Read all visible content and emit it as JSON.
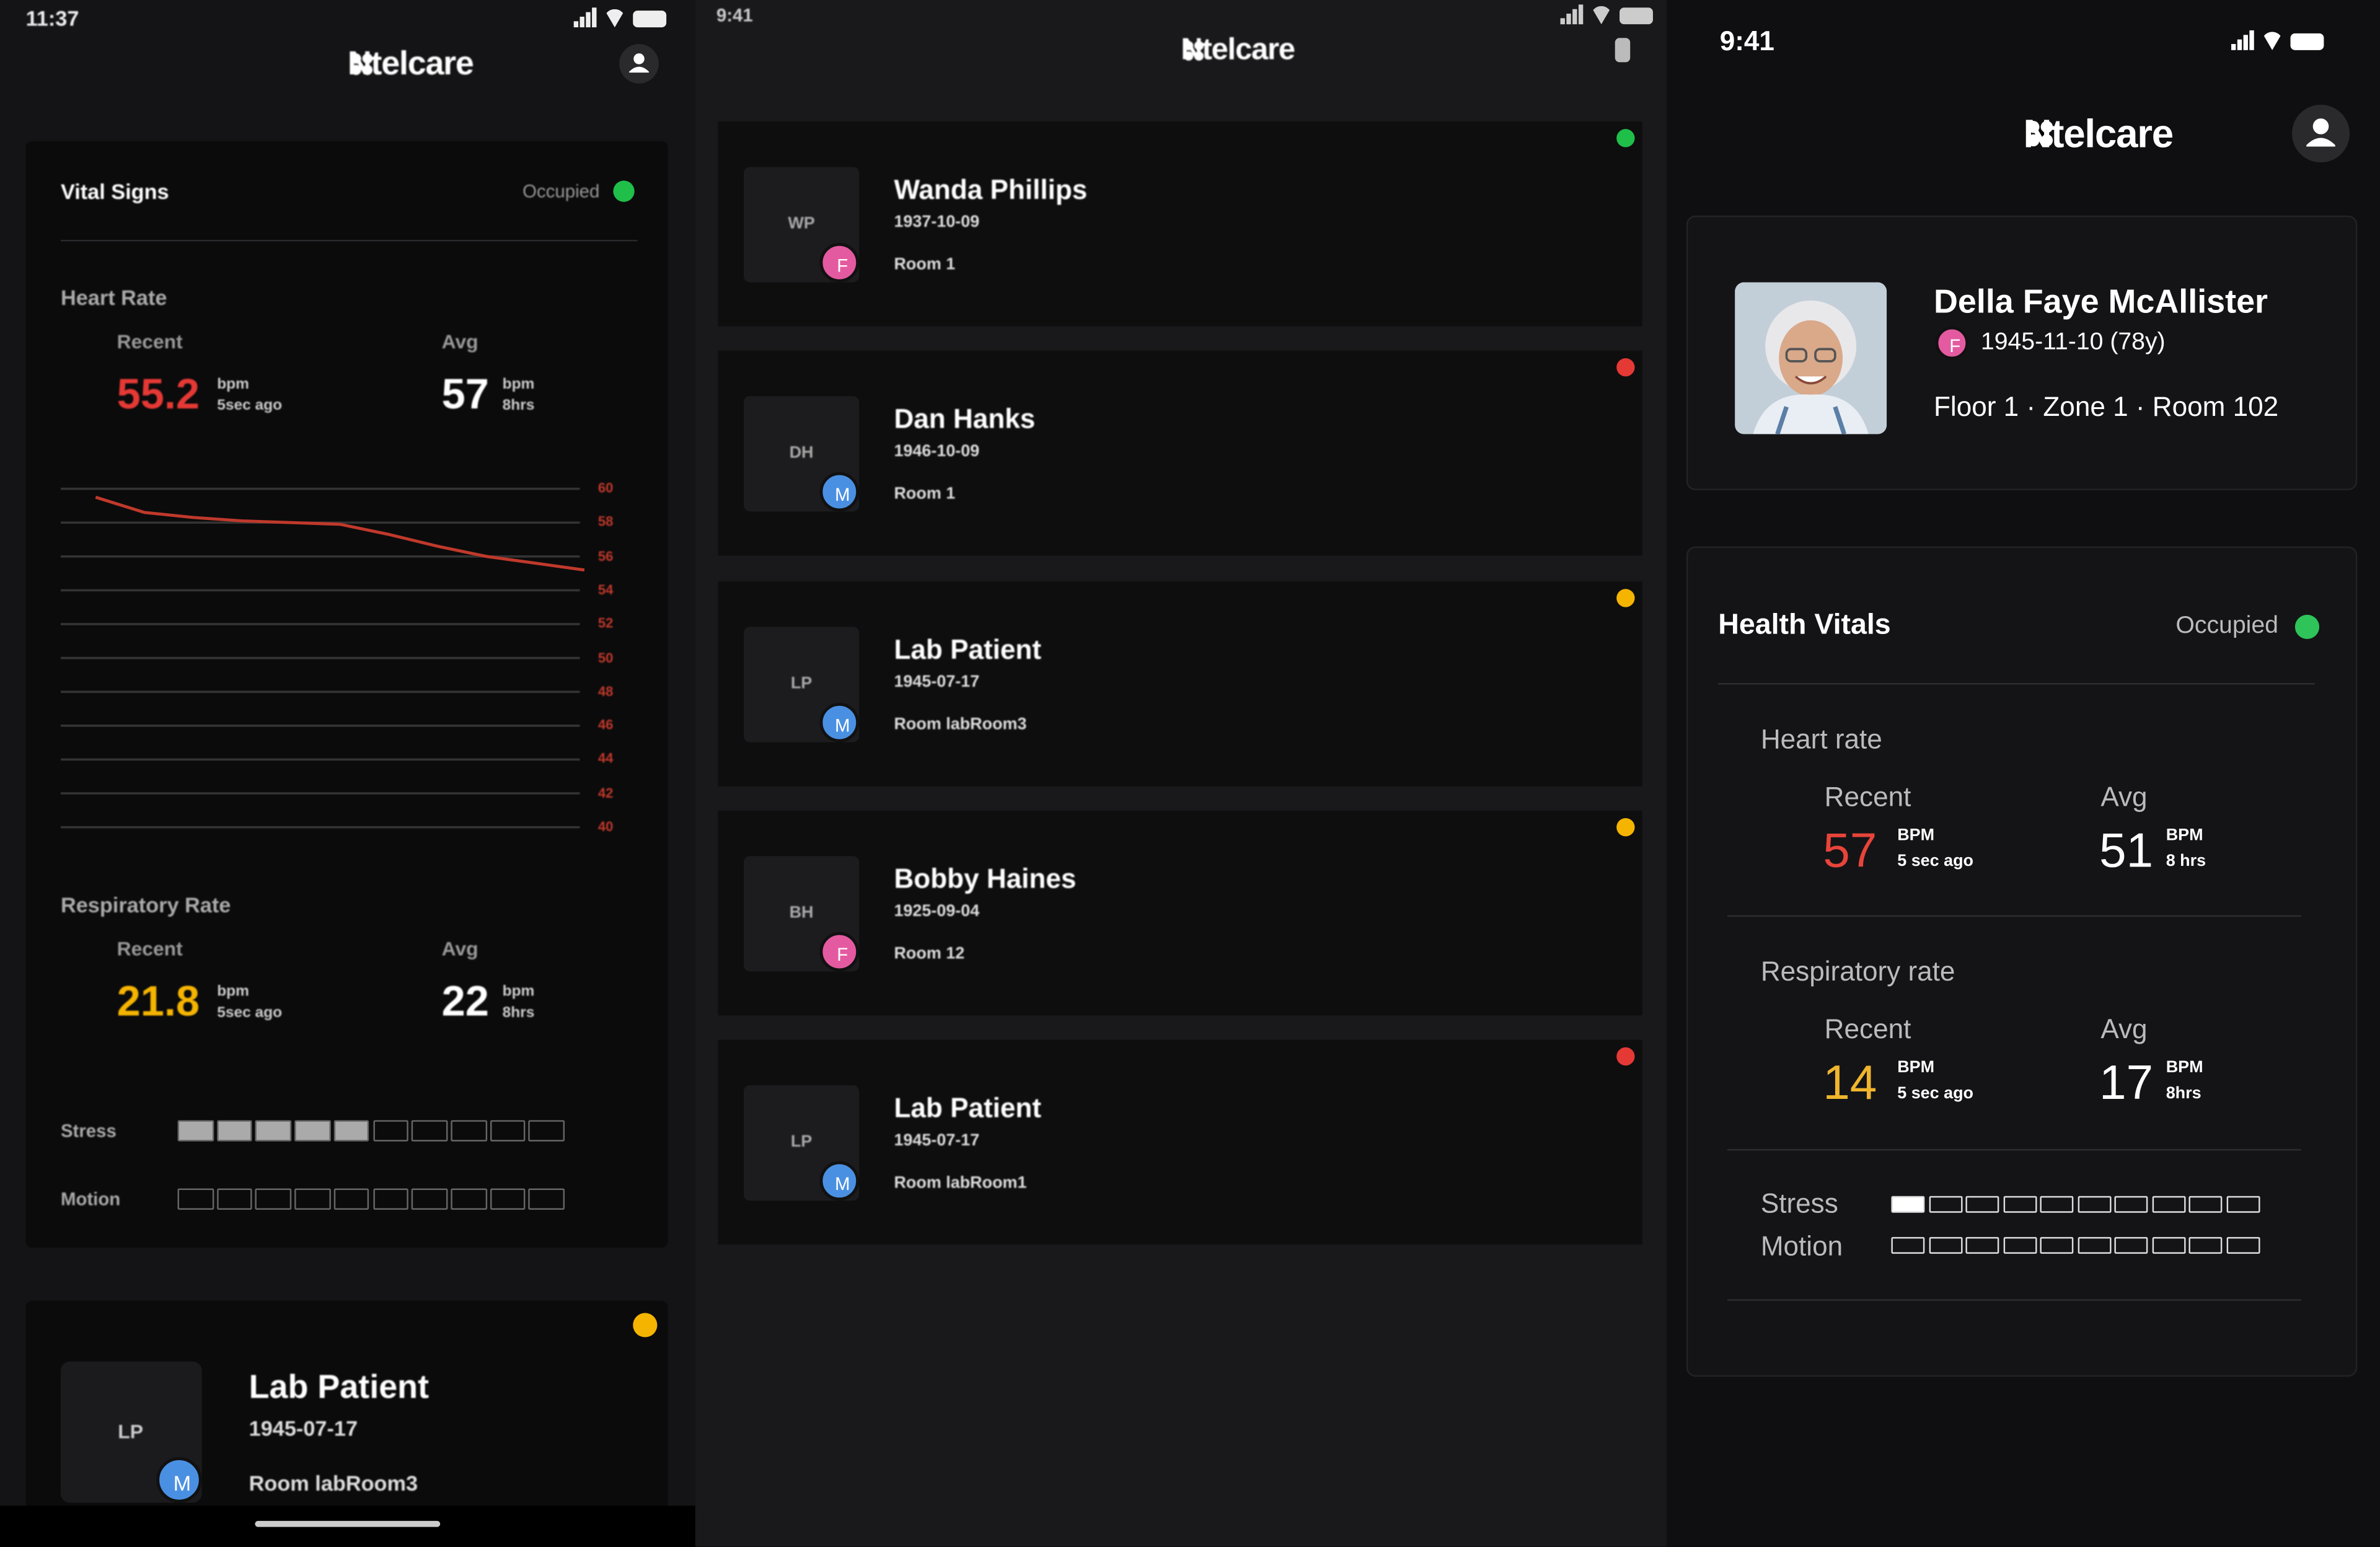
{
  "left_screen": {
    "status_time": "11:37",
    "brand": "Ntelcare",
    "vitals": {
      "title": "Vital Signs",
      "status": "Occupied",
      "heart_rate": {
        "label": "Heart Rate",
        "recent_label": "Recent",
        "recent_value": 55.2,
        "recent_unit": "bpm",
        "recent_time": "5sec ago",
        "avg_label": "Avg",
        "avg_value": 57,
        "avg_unit": "bpm",
        "avg_time": "8hrs"
      },
      "heart_chart": {
        "type": "line",
        "ylim": [
          40,
          60
        ],
        "yticks": [
          60,
          58,
          56,
          54,
          52,
          50,
          48,
          46,
          44,
          42,
          40
        ],
        "values": [
          59.5,
          58.6,
          58.3,
          58.1,
          58,
          57.9,
          57.3,
          56.6,
          56,
          55.6,
          55.2
        ],
        "color": "#c0392b"
      },
      "respiratory_rate": {
        "label": "Respiratory Rate",
        "recent_label": "Recent",
        "recent_value": 21.8,
        "recent_unit": "bpm",
        "recent_time": "5sec ago",
        "avg_label": "Avg",
        "avg_value": 22,
        "avg_unit": "bpm",
        "avg_time": "8hrs"
      },
      "stress": {
        "label": "Stress",
        "level": 5,
        "max": 10
      },
      "motion": {
        "label": "Motion",
        "level": 0,
        "max": 10
      }
    },
    "patient_card": {
      "initials": "LP",
      "gender": "M",
      "name": "Lab Patient",
      "dob": "1945-07-17",
      "room": "Room labRoom3",
      "status_color": "#f5b400"
    }
  },
  "middle_screen": {
    "status_time": "9:41",
    "brand": "Ntelcare",
    "patients": [
      {
        "initials": "WP",
        "gender": "F",
        "name": "Wanda Phillips",
        "dob": "1937-10-09",
        "room": "Room 1",
        "status_color": "#1fbf4a"
      },
      {
        "initials": "DH",
        "gender": "M",
        "name": "Dan Hanks",
        "dob": "1946-10-09",
        "room": "Room 1",
        "status_color": "#e53935"
      },
      {
        "initials": "LP",
        "gender": "M",
        "name": "Lab Patient",
        "dob": "1945-07-17",
        "room": "Room labRoom3",
        "status_color": "#f5b400"
      },
      {
        "initials": "BH",
        "gender": "F",
        "name": "Bobby Haines",
        "dob": "1925-09-04",
        "room": "Room 12",
        "status_color": "#f5b400"
      },
      {
        "initials": "LP",
        "gender": "M",
        "name": "Lab Patient",
        "dob": "1945-07-17",
        "room": "Room labRoom1",
        "status_color": "#e53935"
      }
    ]
  },
  "right_screen": {
    "status_time": "9:41",
    "brand": "Ntelcare",
    "profile": {
      "name": "Della Faye McAllister",
      "gender": "F",
      "dob": "1945-11-10 (78y)",
      "location": "Floor 1 · Zone 1 · Room 102"
    },
    "vitals": {
      "title": "Health Vitals",
      "status": "Occupied",
      "heart_rate": {
        "label": "Heart rate",
        "recent_label": "Recent",
        "recent_value": 57,
        "recent_unit": "BPM",
        "recent_time": "5 sec ago",
        "avg_label": "Avg",
        "avg_value": 51,
        "avg_unit": "BPM",
        "avg_time": "8 hrs"
      },
      "respiratory_rate": {
        "label": "Respiratory rate",
        "recent_label": "Recent",
        "recent_value": 14,
        "recent_unit": "BPM",
        "recent_time": "5 sec ago",
        "avg_label": "Avg",
        "avg_value": 17,
        "avg_unit": "BPM",
        "avg_time": "8hrs"
      },
      "stress": {
        "label": "Stress",
        "level": 1,
        "max": 10
      },
      "motion": {
        "label": "Motion",
        "level": 0,
        "max": 10
      }
    }
  }
}
